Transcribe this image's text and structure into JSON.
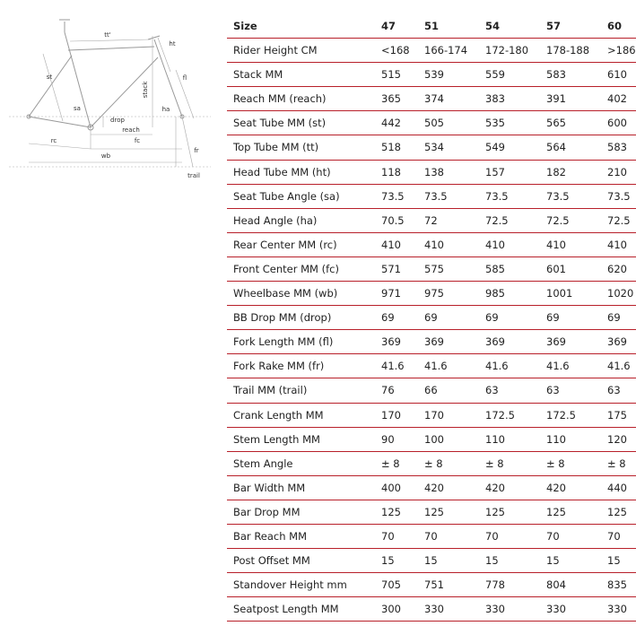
{
  "diagram": {
    "labels": [
      "tt'",
      "ht",
      "st",
      "stack",
      "fl",
      "sa",
      "ha",
      "drop",
      "reach",
      "rc",
      "fc",
      "wb",
      "fr",
      "trail"
    ]
  },
  "table": {
    "header": [
      "Size",
      "47",
      "51",
      "54",
      "57",
      "60"
    ],
    "rows": [
      [
        "Rider Height CM",
        "<168",
        "166-174",
        "172-180",
        "178-188",
        ">186"
      ],
      [
        "Stack MM",
        "515",
        "539",
        "559",
        "583",
        "610"
      ],
      [
        "Reach MM (reach)",
        "365",
        "374",
        "383",
        "391",
        "402"
      ],
      [
        "Seat Tube MM (st)",
        "442",
        "505",
        "535",
        "565",
        "600"
      ],
      [
        "Top Tube MM (tt)",
        "518",
        "534",
        "549",
        "564",
        "583"
      ],
      [
        "Head Tube MM (ht)",
        "118",
        "138",
        "157",
        "182",
        "210"
      ],
      [
        "Seat Tube Angle (sa)",
        "73.5",
        "73.5",
        "73.5",
        "73.5",
        "73.5"
      ],
      [
        "Head Angle (ha)",
        "70.5",
        "72",
        "72.5",
        "72.5",
        "72.5"
      ],
      [
        "Rear Center MM (rc)",
        "410",
        "410",
        "410",
        "410",
        "410"
      ],
      [
        "Front Center MM (fc)",
        "571",
        "575",
        "585",
        "601",
        "620"
      ],
      [
        "Wheelbase MM (wb)",
        "971",
        "975",
        "985",
        "1001",
        "1020"
      ],
      [
        "BB Drop MM (drop)",
        "69",
        "69",
        "69",
        "69",
        "69"
      ],
      [
        "Fork Length MM (fl)",
        "369",
        "369",
        "369",
        "369",
        "369"
      ],
      [
        "Fork Rake MM (fr)",
        "41.6",
        "41.6",
        "41.6",
        "41.6",
        "41.6"
      ],
      [
        "Trail MM (trail)",
        "76",
        "66",
        "63",
        "63",
        "63"
      ],
      [
        "Crank Length MM",
        "170",
        "170",
        "172.5",
        "172.5",
        "175"
      ],
      [
        "Stem Length MM",
        "90",
        "100",
        "110",
        "110",
        "120"
      ],
      [
        "Stem Angle",
        "± 8",
        "± 8",
        "± 8",
        "± 8",
        "± 8"
      ],
      [
        "Bar Width MM",
        "400",
        "420",
        "420",
        "420",
        "440"
      ],
      [
        "Bar Drop MM",
        "125",
        "125",
        "125",
        "125",
        "125"
      ],
      [
        "Bar Reach MM",
        "70",
        "70",
        "70",
        "70",
        "70"
      ],
      [
        "Post Offset MM",
        "15",
        "15",
        "15",
        "15",
        "15"
      ],
      [
        "Standover Height mm",
        "705",
        "751",
        "778",
        "804",
        "835"
      ],
      [
        "Seatpost Length MM",
        "300",
        "330",
        "330",
        "330",
        "330"
      ]
    ]
  }
}
